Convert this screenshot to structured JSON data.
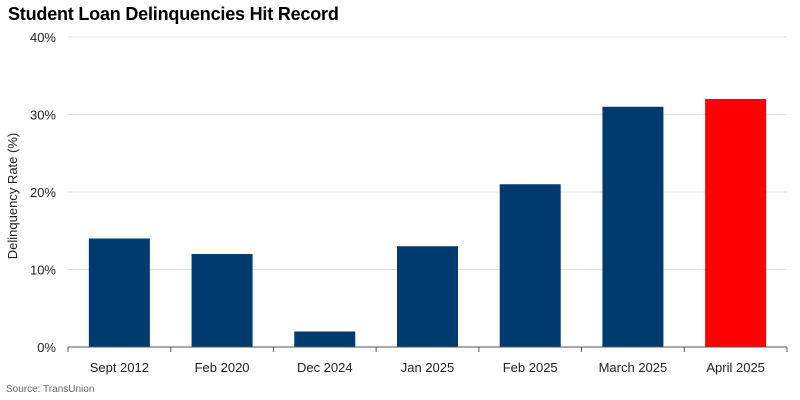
{
  "chart_data": {
    "type": "bar",
    "title": "Student Loan Delinquencies Hit Record",
    "ylabel": "Delinquency Rate (%)",
    "xlabel": "",
    "categories": [
      "Sept 2012",
      "Feb 2020",
      "Dec 2024",
      "Jan 2025",
      "Feb 2025",
      "March 2025",
      "April 2025"
    ],
    "values": [
      14,
      12,
      2,
      13,
      21,
      31,
      32
    ],
    "ylim": [
      0,
      40
    ],
    "yticks": [
      0,
      10,
      20,
      30,
      40
    ],
    "ytick_labels": [
      "0%",
      "10%",
      "20%",
      "30%",
      "40%"
    ],
    "grid": true,
    "colors": {
      "default": "#003b6f",
      "highlight": "#ff0000",
      "highlight_category": "April 2025",
      "grid": "#e3e3e3",
      "axis": "#555555"
    },
    "source": "Source: TransUnion"
  }
}
